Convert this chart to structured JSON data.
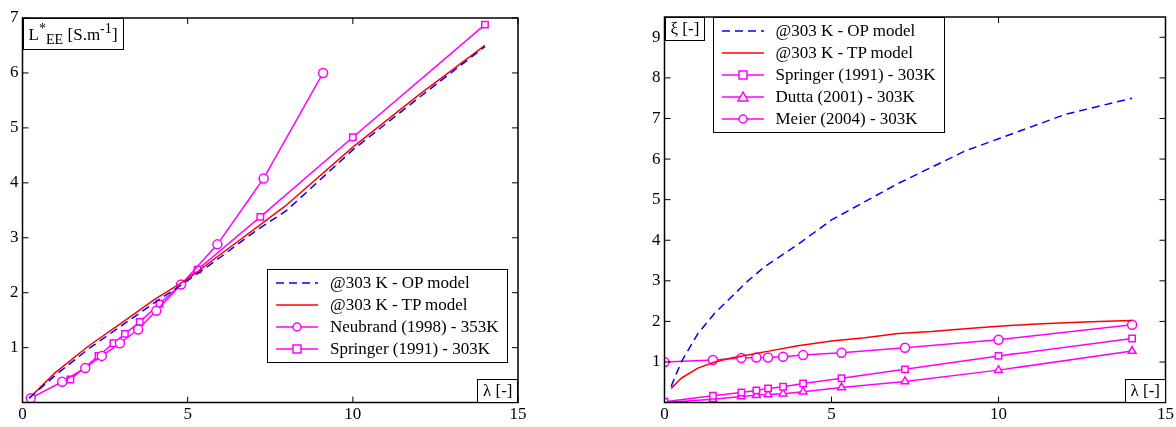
{
  "chart_data": [
    {
      "type": "line",
      "xlabel": "λ [-]",
      "ylabel": "L$^{*}$$_{EE}$ [S.m$^{-1}$]",
      "xlim": [
        0,
        15
      ],
      "ylim": [
        0,
        7
      ],
      "xticks": [
        0,
        5,
        10,
        15
      ],
      "yticks": [
        1,
        2,
        3,
        4,
        5,
        6,
        7
      ],
      "grid": false,
      "legend": "bottom right",
      "marker": "none",
      "series": [
        {
          "name": "@303 K - OP model",
          "color": "#0000ff",
          "line_style": "dashed",
          "x": [
            0.2,
            1,
            2,
            3,
            4,
            5,
            6,
            7,
            8,
            10,
            12,
            14
          ],
          "values": [
            0.08,
            0.5,
            0.98,
            1.4,
            1.82,
            2.22,
            2.65,
            3.1,
            3.5,
            4.6,
            5.55,
            6.48
          ]
        },
        {
          "name": "@303 K - TP model",
          "color": "#ff0000",
          "line_style": "solid",
          "x": [
            0.2,
            1,
            2,
            3,
            4,
            5,
            6,
            7,
            8,
            10,
            12,
            14
          ],
          "values": [
            0.08,
            0.55,
            1.03,
            1.45,
            1.88,
            2.25,
            2.7,
            3.15,
            3.6,
            4.65,
            5.6,
            6.5
          ]
        },
        {
          "name": "Neubrand (1998) - 353K",
          "color": "#ff00ff",
          "marker": "circle",
          "x": [
            0.25,
            1.2,
            1.9,
            2.4,
            2.95,
            3.5,
            4.05,
            4.8,
            5.9,
            7.3,
            9.1
          ],
          "values": [
            0.08,
            0.38,
            0.63,
            0.85,
            1.08,
            1.33,
            1.67,
            2.15,
            2.88,
            4.08,
            6.0
          ]
        },
        {
          "name": "Springer (1991) - 303K",
          "color": "#ff00ff",
          "marker": "square",
          "x": [
            1.45,
            2.3,
            2.75,
            3.1,
            3.55,
            4.15,
            5.3,
            7.2,
            10,
            14
          ],
          "values": [
            0.42,
            0.85,
            1.08,
            1.25,
            1.47,
            1.8,
            2.42,
            3.38,
            4.83,
            6.88
          ]
        }
      ]
    },
    {
      "type": "line",
      "xlabel": "λ [-]",
      "ylabel": "ξ [-]",
      "xlim": [
        0,
        15
      ],
      "ylim": [
        0,
        9.5
      ],
      "xticks": [
        0,
        5,
        10,
        15
      ],
      "yticks": [
        1,
        2,
        3,
        4,
        5,
        6,
        7,
        8,
        9
      ],
      "grid": false,
      "legend": "top left",
      "marker": "none",
      "series": [
        {
          "name": "@303 K - OP model",
          "color": "#0000ff",
          "line_style": "dashed",
          "x": [
            0.2,
            0.5,
            1,
            1.5,
            2,
            2.5,
            3,
            4,
            5,
            6,
            7,
            8,
            9,
            10,
            11,
            12,
            13,
            14
          ],
          "values": [
            0.4,
            1.0,
            1.7,
            2.2,
            2.6,
            3.0,
            3.35,
            3.9,
            4.5,
            4.95,
            5.4,
            5.8,
            6.2,
            6.5,
            6.8,
            7.1,
            7.3,
            7.5
          ]
        },
        {
          "name": "@303 K - TP model",
          "color": "#ff0000",
          "line_style": "solid",
          "x": [
            0.2,
            0.5,
            1,
            1.5,
            2,
            3,
            4,
            5,
            6,
            7,
            8,
            9,
            10,
            11,
            12,
            13,
            14
          ],
          "values": [
            0.35,
            0.6,
            0.85,
            1.0,
            1.1,
            1.25,
            1.4,
            1.52,
            1.6,
            1.7,
            1.75,
            1.82,
            1.88,
            1.93,
            1.97,
            2.0,
            2.02
          ]
        },
        {
          "name": "Springer (1991) - 303K",
          "color": "#ff00ff",
          "marker": "square",
          "x": [
            0,
            1.45,
            2.3,
            2.75,
            3.1,
            3.55,
            4.15,
            5.3,
            7.2,
            10,
            14
          ],
          "values": [
            0.02,
            0.17,
            0.25,
            0.3,
            0.35,
            0.39,
            0.47,
            0.6,
            0.82,
            1.15,
            1.58
          ]
        },
        {
          "name": "Dutta (2001) - 303K",
          "color": "#ff00ff",
          "marker": "triangle",
          "x": [
            0,
            1.45,
            2.3,
            2.75,
            3.1,
            3.55,
            4.15,
            5.3,
            7.2,
            10,
            14
          ],
          "values": [
            0,
            0.08,
            0.15,
            0.18,
            0.2,
            0.22,
            0.27,
            0.37,
            0.52,
            0.8,
            1.27
          ]
        },
        {
          "name": "Meier (2004) - 303K",
          "color": "#ff00ff",
          "marker": "circle",
          "x": [
            0,
            1.45,
            2.3,
            2.75,
            3.1,
            3.55,
            4.15,
            5.3,
            7.2,
            10,
            14
          ],
          "values": [
            1.0,
            1.05,
            1.1,
            1.11,
            1.11,
            1.13,
            1.17,
            1.23,
            1.35,
            1.55,
            1.92
          ]
        }
      ]
    }
  ]
}
